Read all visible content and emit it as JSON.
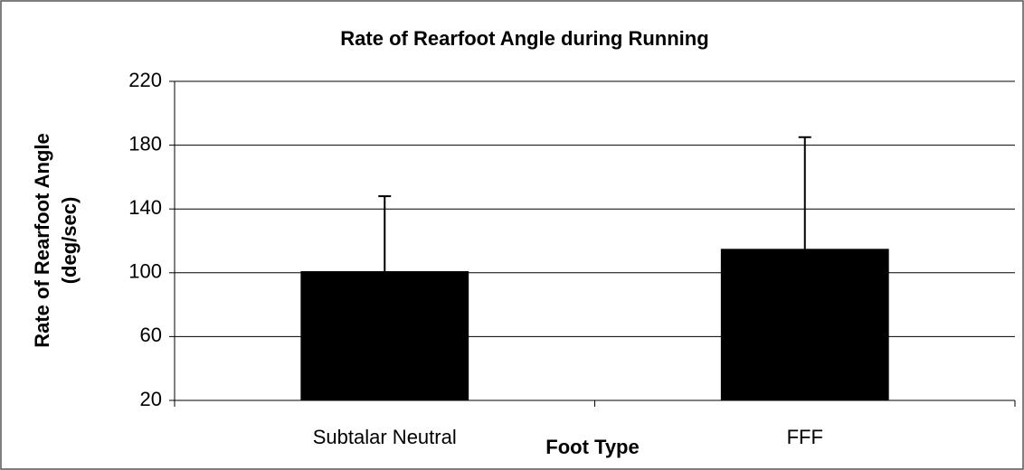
{
  "chart_data": {
    "type": "bar",
    "title": "Rate of Rearfoot Angle during Running",
    "x_label": "Foot Type",
    "y_label": [
      "Rate of Rearfoot Angle",
      "(deg/sec)"
    ],
    "categories": [
      "Subtalar Neutral",
      "FFF"
    ],
    "values": [
      101,
      115
    ],
    "errors": [
      47,
      70
    ],
    "color": "#000000",
    "ylim": [
      20,
      220
    ],
    "yticks": [
      20,
      60,
      100,
      140,
      180,
      220
    ],
    "grid": true
  }
}
